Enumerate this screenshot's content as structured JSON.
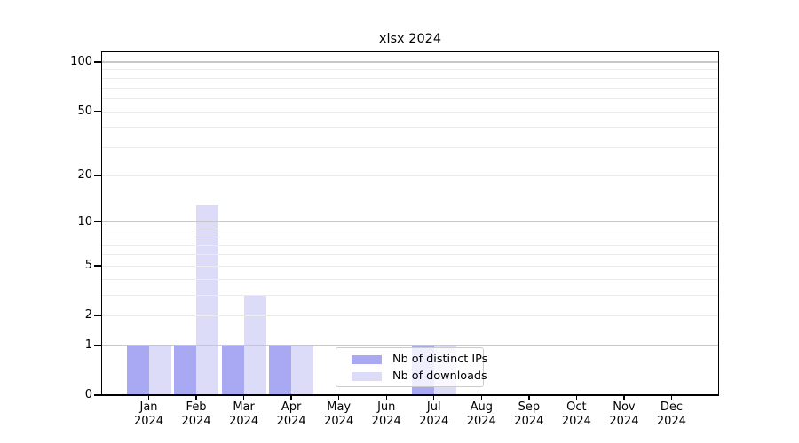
{
  "title": "xlsx 2024",
  "chart_data": {
    "type": "bar",
    "title": "xlsx 2024",
    "categories": [
      "Jan 2024",
      "Feb 2024",
      "Mar 2024",
      "Apr 2024",
      "May 2024",
      "Jun 2024",
      "Jul 2024",
      "Aug 2024",
      "Sep 2024",
      "Oct 2024",
      "Nov 2024",
      "Dec 2024"
    ],
    "series": [
      {
        "name": "Nb of distinct IPs",
        "color": "#a9a9f3",
        "values": [
          1,
          1,
          1,
          1,
          0,
          0,
          1,
          0,
          0,
          0,
          0,
          0
        ]
      },
      {
        "name": "Nb of downloads",
        "color": "#dcdcf8",
        "values": [
          1,
          13,
          3,
          1,
          0,
          0,
          1,
          0,
          0,
          0,
          0,
          0
        ]
      }
    ],
    "yscale": "log1p",
    "yticks": [
      0,
      1,
      2,
      5,
      10,
      20,
      50,
      100
    ],
    "ylim": [
      0,
      116
    ],
    "grid": true,
    "legend_position": "bottom-center-inside"
  }
}
